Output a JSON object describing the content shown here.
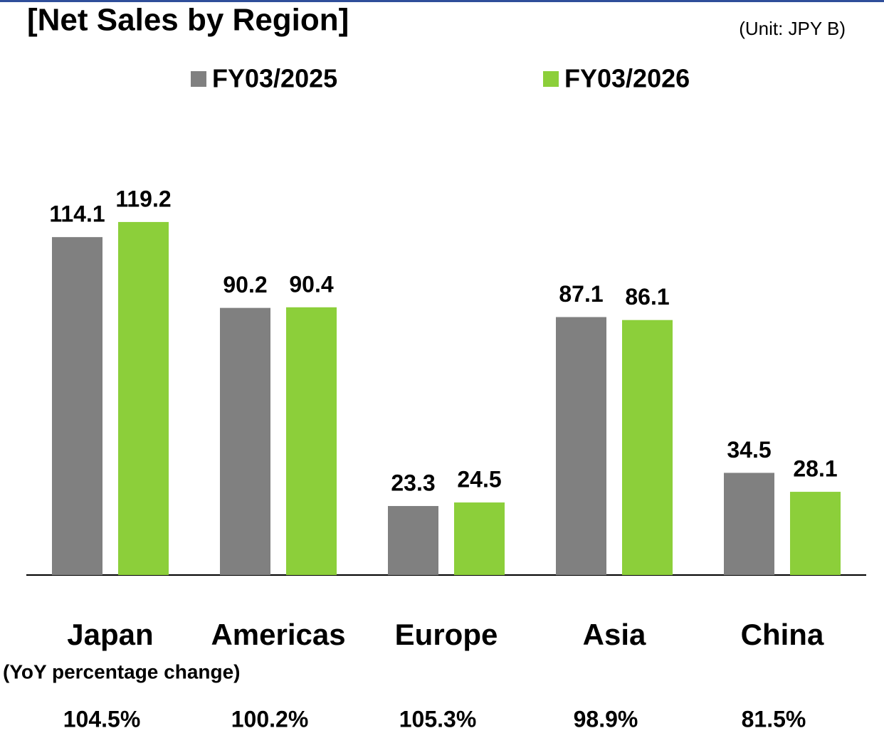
{
  "chart_data": {
    "type": "bar",
    "title": "[Net Sales by Region]",
    "subtitle": "(Unit: JPY B)",
    "categories": [
      "Japan",
      "Americas",
      "Europe",
      "Asia",
      "China"
    ],
    "series": [
      {
        "name": "FY03/2025",
        "color": "#808080",
        "values": [
          114.1,
          90.2,
          23.3,
          87.1,
          34.5
        ]
      },
      {
        "name": "FY03/2026",
        "color": "#8ccf3a",
        "values": [
          119.2,
          90.4,
          24.5,
          86.1,
          28.1
        ]
      }
    ],
    "ylim": [
      0,
      130
    ],
    "yoy": {
      "label": "(YoY percentage change)",
      "values": [
        104.5,
        100.2,
        105.3,
        98.9,
        81.5
      ],
      "value_labels": [
        "104.5%",
        "100.2%",
        "105.3%",
        "98.9%",
        "81.5%"
      ]
    }
  }
}
